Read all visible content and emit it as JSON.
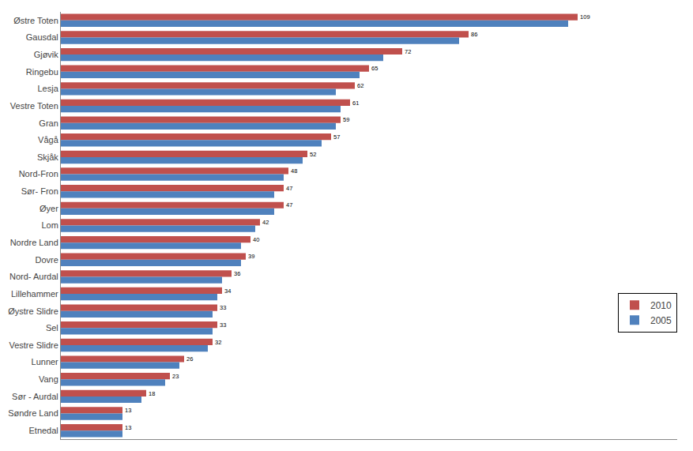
{
  "chart_data": {
    "type": "bar",
    "orientation": "horizontal",
    "categories": [
      "Østre Toten",
      "Gausdal",
      "Gjøvik",
      "Ringebu",
      "Lesja",
      "Vestre Toten",
      "Gran",
      "Vågå",
      "Skjåk",
      "Nord-Fron",
      "Sør- Fron",
      "Øyer",
      "Lom",
      "Nordre Land",
      "Dovre",
      "Nord- Aurdal",
      "Lillehammer",
      "Øystre Slidre",
      "Sel",
      "Vestre Slidre",
      "Lunner",
      "Vang",
      "Sør - Aurdal",
      "Søndre Land",
      "Etnedal"
    ],
    "series": [
      {
        "name": "2010",
        "color": "#c0504d",
        "data_labels": true,
        "values": [
          109,
          86,
          72,
          65,
          62,
          61,
          59,
          57,
          52,
          48,
          47,
          47,
          42,
          40,
          39,
          36,
          34,
          33,
          33,
          32,
          26,
          23,
          18,
          13,
          13
        ]
      },
      {
        "name": "2005",
        "color": "#4f81bd",
        "data_labels": false,
        "values": [
          107,
          84,
          68,
          63,
          58,
          59,
          58,
          55,
          51,
          47,
          45,
          45,
          41,
          38,
          38,
          34,
          33,
          32,
          32,
          31,
          25,
          22,
          17,
          13,
          13
        ]
      }
    ],
    "xlim": [
      0,
      130
    ],
    "tick_labels": "y",
    "grid": false,
    "legend": "lower right"
  }
}
